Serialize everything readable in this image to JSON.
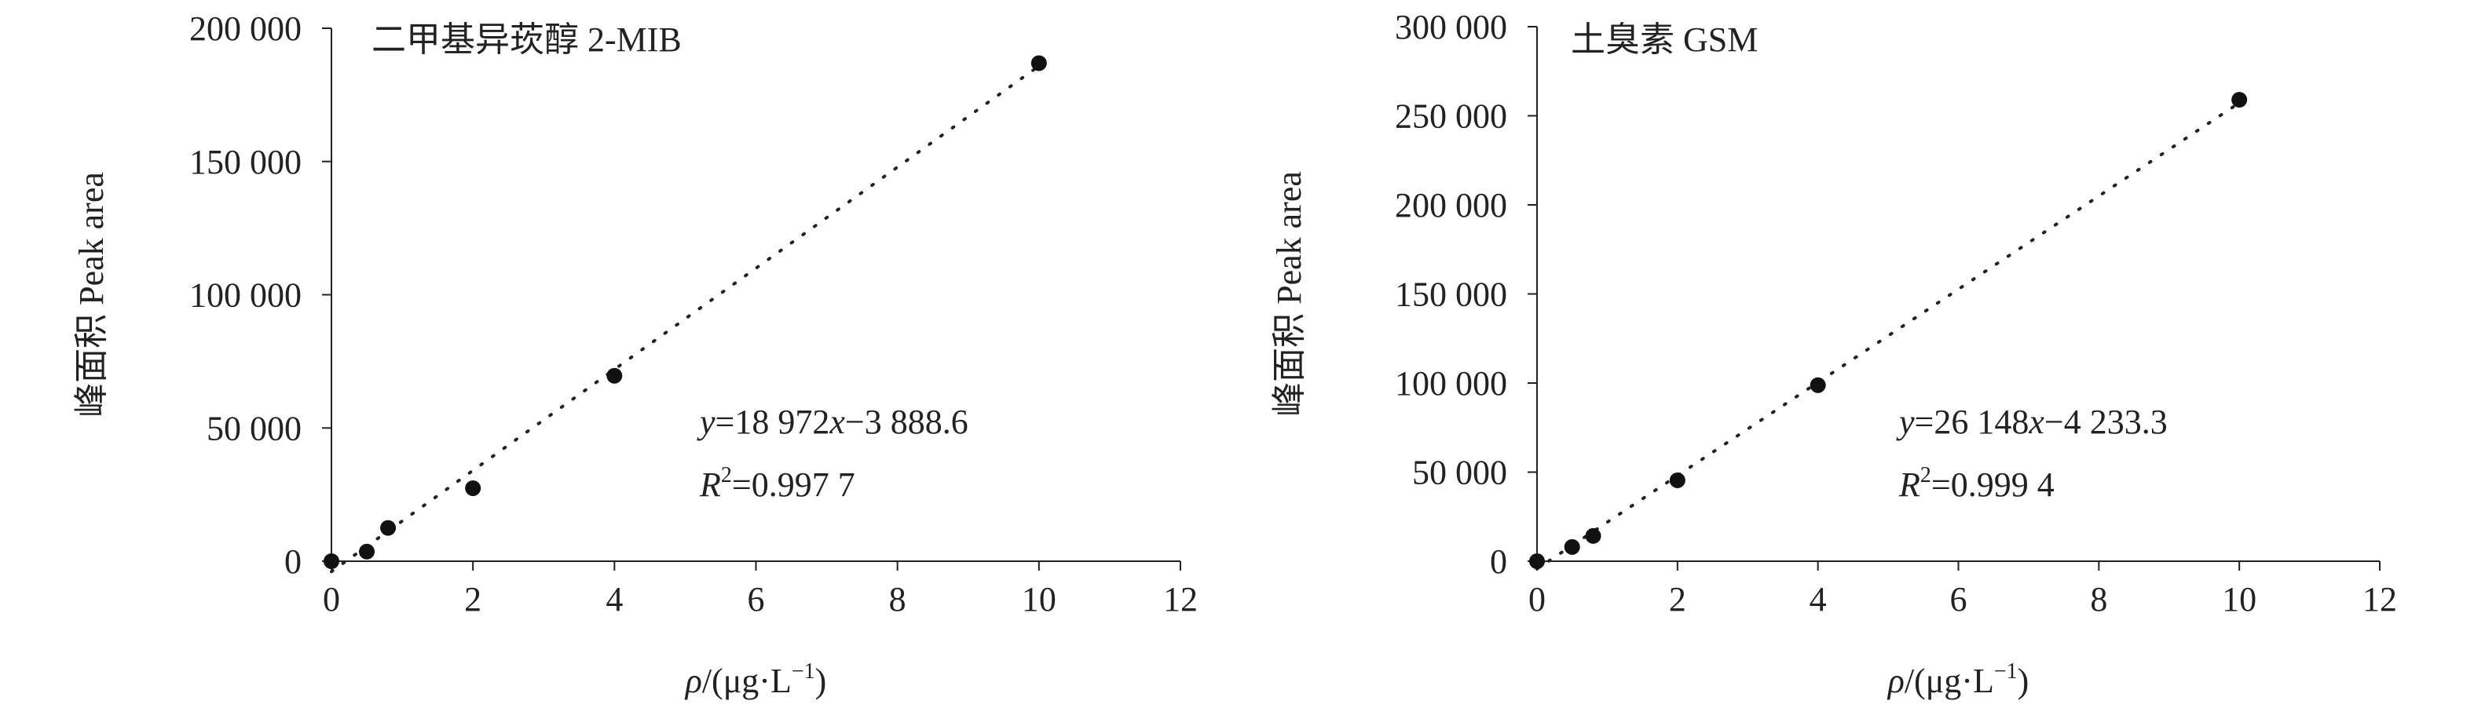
{
  "chart_data": [
    {
      "type": "scatter",
      "title": "二甲基异莰醇 2-MIB",
      "ylabel": "峰面积 Peak area",
      "xlabel": [
        "ρ",
        "/(μg·L",
        "−1",
        ")"
      ],
      "x": [
        0,
        0.5,
        0.8,
        2,
        4,
        10
      ],
      "values": [
        0,
        3600,
        12500,
        27400,
        69600,
        186900
      ],
      "color": "#111111",
      "xlim": [
        0,
        12
      ],
      "xticks": [
        0,
        2,
        4,
        6,
        8,
        10,
        12
      ],
      "ylim": [
        0,
        200000
      ],
      "yticks": [
        0,
        {
          "value": 50000,
          "label": "50 000"
        },
        {
          "value": 100000,
          "label": "100 000"
        },
        {
          "value": 150000,
          "label": "150 000"
        },
        {
          "value": 200000,
          "label": "200 000"
        }
      ],
      "trendline": {
        "y": "y",
        "eq": "=",
        "x": "x",
        "slope": {
          "value": 18972,
          "label": "18 972"
        },
        "intercept": {
          "value": -3888.6,
          "label": "−3 888.6"
        },
        "r": "R",
        "sup": "2",
        "r2": {
          "value": 0.9977,
          "label": "0.997 7"
        }
      }
    },
    {
      "type": "scatter",
      "title": "土臭素 GSM",
      "ylabel": "峰面积 Peak area",
      "xlabel": [
        "ρ",
        "/(μg·L",
        "−1",
        ")"
      ],
      "x": [
        0,
        0.5,
        0.8,
        2,
        4,
        10
      ],
      "values": [
        0,
        8000,
        14200,
        45400,
        98800,
        259000
      ],
      "color": "#111111",
      "xlim": [
        0,
        12
      ],
      "xticks": [
        0,
        2,
        4,
        6,
        8,
        10,
        12
      ],
      "ylim": [
        0,
        300000
      ],
      "yticks": [
        0,
        {
          "value": 50000,
          "label": "50 000"
        },
        {
          "value": 100000,
          "label": "100 000"
        },
        {
          "value": 150000,
          "label": "150 000"
        },
        {
          "value": 200000,
          "label": "200 000"
        },
        {
          "value": 250000,
          "label": "250 000"
        },
        {
          "value": 300000,
          "label": "300 000"
        }
      ],
      "trendline": {
        "y": "y",
        "eq": "=",
        "x": "x",
        "slope": {
          "value": 26148,
          "label": "26 148"
        },
        "intercept": {
          "value": -4233.3,
          "label": "−4 233.3"
        },
        "r": "R",
        "sup": "2",
        "r2": {
          "value": 0.9994,
          "label": "0.999 4"
        }
      }
    }
  ]
}
